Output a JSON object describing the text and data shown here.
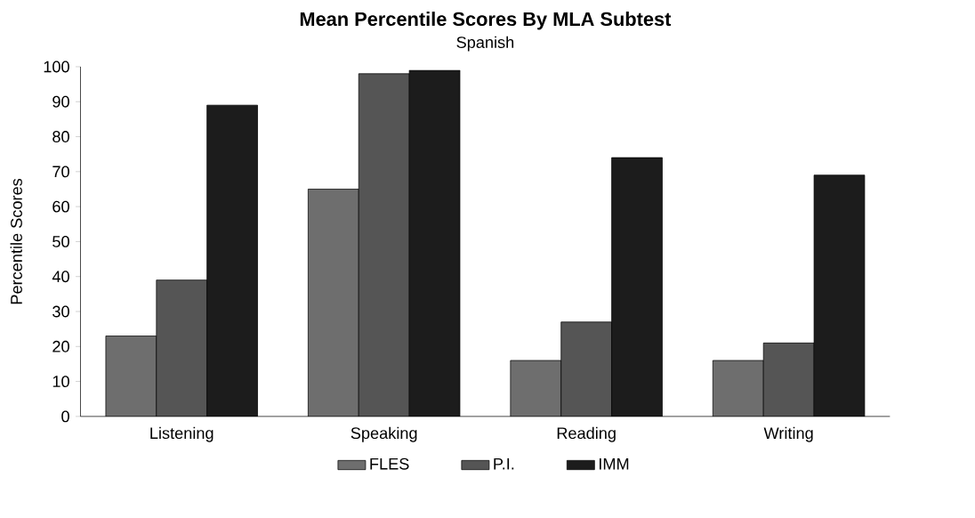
{
  "chart_data": {
    "type": "bar",
    "title": "Mean Percentile Scores By MLA Subtest",
    "subtitle": "Spanish",
    "ylabel": "Percentile Scores",
    "categories": [
      "Listening",
      "Speaking",
      "Reading",
      "Writing"
    ],
    "series": [
      {
        "name": "FLES",
        "color": "#6e6e6e",
        "values": [
          23,
          65,
          16,
          16
        ]
      },
      {
        "name": "P.I.",
        "color": "#555555",
        "values": [
          39,
          98,
          27,
          21
        ]
      },
      {
        "name": "IMM",
        "color": "#1c1c1c",
        "values": [
          89,
          99,
          74,
          69
        ]
      }
    ],
    "ylim": [
      0,
      100
    ],
    "yticks": [
      0,
      10,
      20,
      30,
      40,
      50,
      60,
      70,
      80,
      90,
      100
    ],
    "grid": false,
    "legend": "bottom"
  }
}
